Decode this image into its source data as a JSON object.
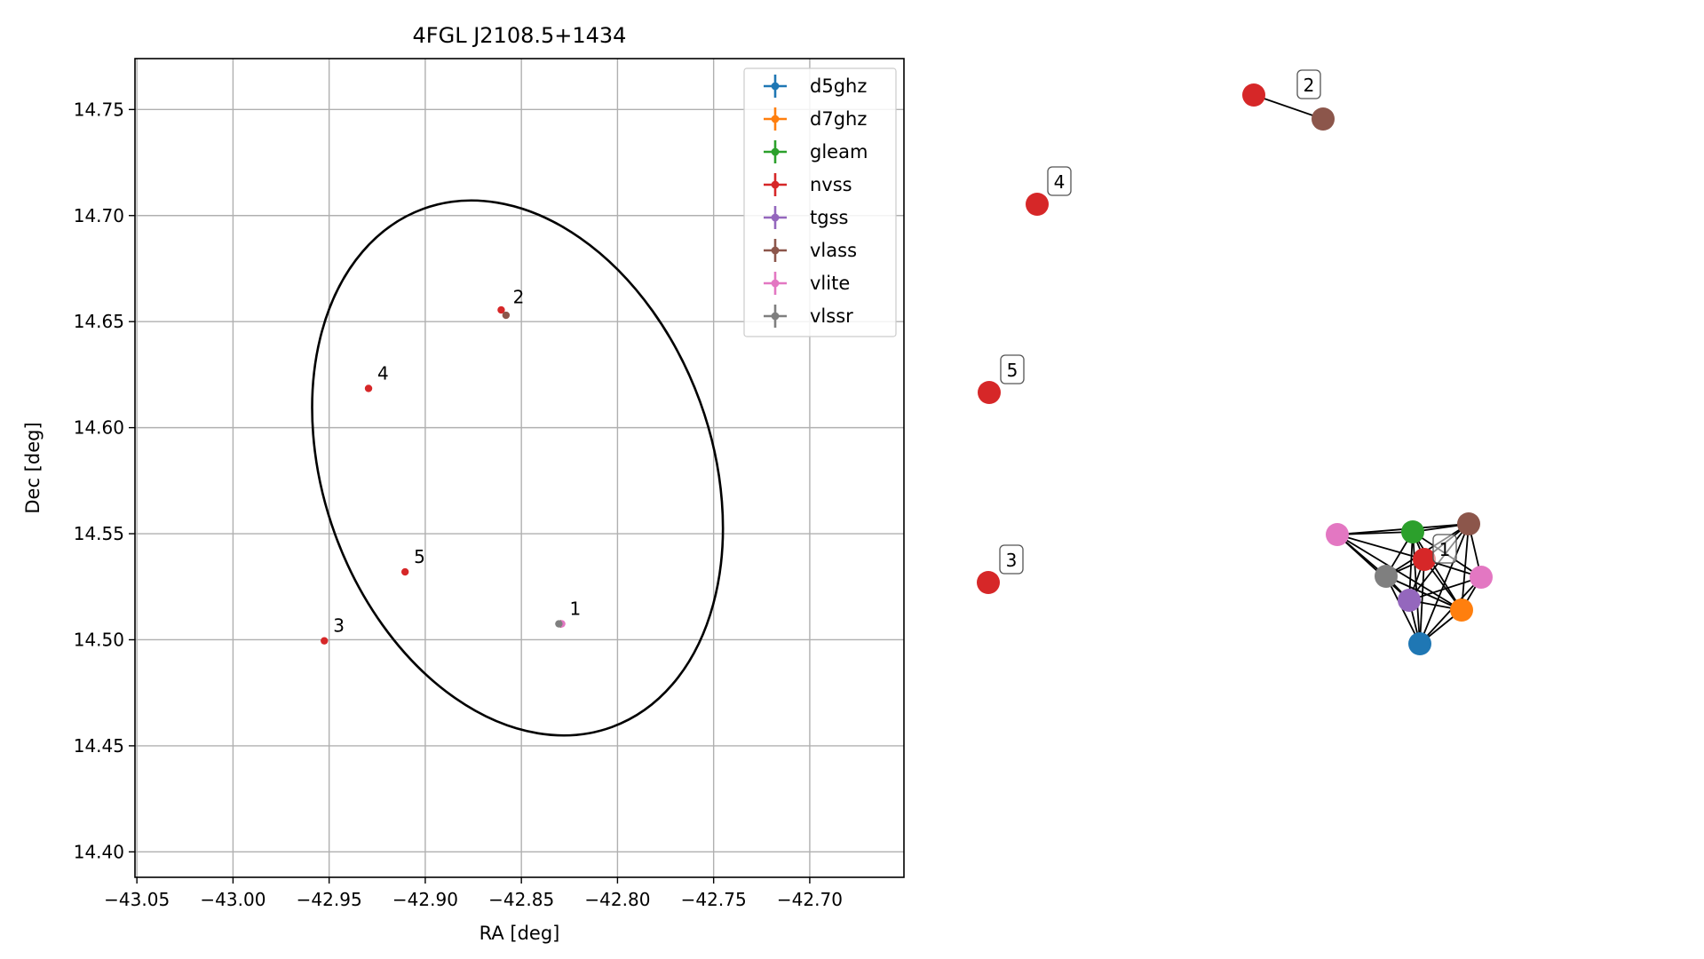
{
  "chart_data": [
    {
      "type": "scatter",
      "title": "4FGL J2108.5+1434",
      "xlabel": "RA [deg]",
      "ylabel": "Dec [deg]",
      "xlim": [
        -43.051,
        -42.651
      ],
      "ylim": [
        14.388,
        14.774
      ],
      "xticks": [
        -43.05,
        -43.0,
        -42.95,
        -42.9,
        -42.85,
        -42.8,
        -42.75,
        -42.7
      ],
      "xtick_labels": [
        "−43.05",
        "−43.00",
        "−42.95",
        "−42.90",
        "−42.85",
        "−42.80",
        "−42.75",
        "−42.70"
      ],
      "yticks": [
        14.4,
        14.45,
        14.5,
        14.55,
        14.6,
        14.65,
        14.7,
        14.75
      ],
      "ytick_labels": [
        "14.40",
        "14.45",
        "14.50",
        "14.55",
        "14.60",
        "14.65",
        "14.70",
        "14.75"
      ],
      "grid": true,
      "legend_position": "upper right",
      "series": [
        {
          "name": "d5ghz",
          "color": "#1f77b4",
          "points": [
            [
              -42.8295,
              14.5075
            ]
          ]
        },
        {
          "name": "d7ghz",
          "color": "#ff7f0e",
          "points": [
            [
              -42.8295,
              14.5075
            ]
          ]
        },
        {
          "name": "gleam",
          "color": "#2ca02c",
          "points": [
            [
              -42.8295,
              14.5075
            ]
          ]
        },
        {
          "name": "nvss",
          "color": "#d62728",
          "points": [
            [
              -42.8295,
              14.5075
            ],
            [
              -42.8605,
              14.6555
            ],
            [
              -42.9525,
              14.4995
            ],
            [
              -42.9295,
              14.6185
            ],
            [
              -42.9105,
              14.532
            ]
          ]
        },
        {
          "name": "tgss",
          "color": "#9467bd",
          "points": [
            [
              -42.8295,
              14.5075
            ]
          ]
        },
        {
          "name": "vlass",
          "color": "#8c564b",
          "points": [
            [
              -42.8295,
              14.5075
            ],
            [
              -42.858,
              14.653
            ]
          ]
        },
        {
          "name": "vlite",
          "color": "#e377c2",
          "points": [
            [
              -42.829,
              14.5075
            ]
          ]
        },
        {
          "name": "vlssr",
          "color": "#7f7f7f",
          "points": [
            [
              -42.8305,
              14.5075
            ]
          ]
        }
      ],
      "point_labels": [
        {
          "text": "1",
          "x": -42.8295,
          "y": 14.5075
        },
        {
          "text": "2",
          "x": -42.859,
          "y": 14.6545
        },
        {
          "text": "3",
          "x": -42.9525,
          "y": 14.4995
        },
        {
          "text": "4",
          "x": -42.9295,
          "y": 14.6185
        },
        {
          "text": "5",
          "x": -42.9105,
          "y": 14.532
        }
      ],
      "ellipse": {
        "center": [
          -42.852,
          14.581
        ],
        "semi_axes": [
          0.101,
          0.13
        ],
        "angle_deg": 20,
        "color": "#000000"
      }
    },
    {
      "type": "network",
      "legend": false,
      "groups": [
        {
          "label": "1",
          "nodes": [
            {
              "id": "d5ghz",
              "color": "#1f77b4"
            },
            {
              "id": "d7ghz",
              "color": "#ff7f0e"
            },
            {
              "id": "gleam",
              "color": "#2ca02c"
            },
            {
              "id": "nvss",
              "color": "#d62728"
            },
            {
              "id": "tgss",
              "color": "#9467bd"
            },
            {
              "id": "vlass",
              "color": "#8c564b"
            },
            {
              "id": "vlite_a",
              "color": "#e377c2"
            },
            {
              "id": "vlite_b",
              "color": "#e377c2"
            },
            {
              "id": "vlssr",
              "color": "#7f7f7f"
            }
          ],
          "edges": [
            [
              "d5ghz",
              "d7ghz"
            ],
            [
              "d5ghz",
              "gleam"
            ],
            [
              "d5ghz",
              "nvss"
            ],
            [
              "d5ghz",
              "tgss"
            ],
            [
              "d5ghz",
              "vlass"
            ],
            [
              "d5ghz",
              "vlite_b"
            ],
            [
              "d5ghz",
              "vlssr"
            ],
            [
              "d7ghz",
              "gleam"
            ],
            [
              "d7ghz",
              "nvss"
            ],
            [
              "d7ghz",
              "tgss"
            ],
            [
              "d7ghz",
              "vlass"
            ],
            [
              "d7ghz",
              "vlite_a"
            ],
            [
              "d7ghz",
              "vlite_b"
            ],
            [
              "d7ghz",
              "vlssr"
            ],
            [
              "gleam",
              "nvss"
            ],
            [
              "gleam",
              "tgss"
            ],
            [
              "gleam",
              "vlass"
            ],
            [
              "gleam",
              "vlite_a"
            ],
            [
              "gleam",
              "vlite_b"
            ],
            [
              "gleam",
              "vlssr"
            ],
            [
              "nvss",
              "tgss"
            ],
            [
              "nvss",
              "vlass"
            ],
            [
              "nvss",
              "vlite_a"
            ],
            [
              "nvss",
              "vlite_b"
            ],
            [
              "nvss",
              "vlssr"
            ],
            [
              "tgss",
              "vlass"
            ],
            [
              "tgss",
              "vlite_a"
            ],
            [
              "tgss",
              "vlite_b"
            ],
            [
              "tgss",
              "vlssr"
            ],
            [
              "vlass",
              "vlite_a"
            ],
            [
              "vlass",
              "vlite_b"
            ],
            [
              "vlass",
              "vlssr"
            ],
            [
              "vlite_a",
              "vlssr"
            ]
          ]
        },
        {
          "label": "2",
          "nodes": [
            {
              "id": "nvss",
              "color": "#d62728"
            },
            {
              "id": "vlass",
              "color": "#8c564b"
            }
          ],
          "edges": [
            [
              "nvss",
              "vlass"
            ]
          ]
        },
        {
          "label": "3",
          "nodes": [
            {
              "id": "nvss",
              "color": "#d62728"
            }
          ],
          "edges": []
        },
        {
          "label": "4",
          "nodes": [
            {
              "id": "nvss",
              "color": "#d62728"
            }
          ],
          "edges": []
        },
        {
          "label": "5",
          "nodes": [
            {
              "id": "nvss",
              "color": "#d62728"
            }
          ],
          "edges": []
        }
      ]
    }
  ]
}
